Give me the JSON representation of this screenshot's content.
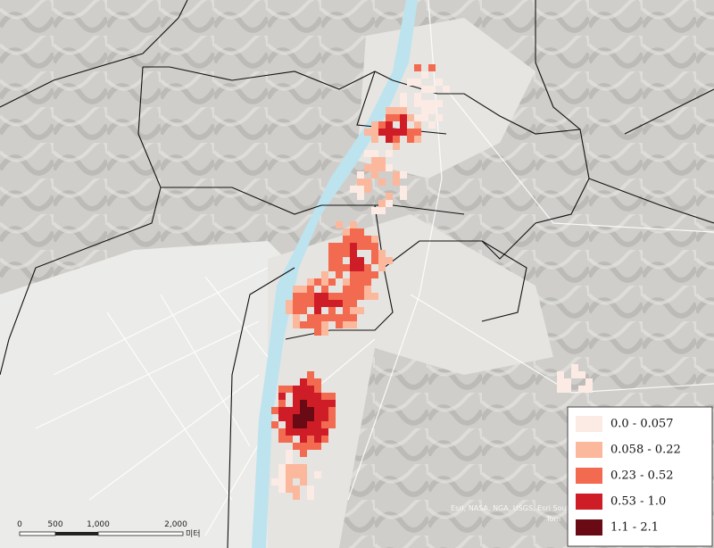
{
  "legend": {
    "items": [
      {
        "label": "0.0 - 0.057",
        "color": "#fcebe4"
      },
      {
        "label": "0.058 - 0.22",
        "color": "#fbb89c"
      },
      {
        "label": "0.23 - 0.52",
        "color": "#f26a4f"
      },
      {
        "label": "0.53 - 1.0",
        "color": "#cf1d28"
      },
      {
        "label": "1.1 - 2.1",
        "color": "#6a0a14"
      }
    ]
  },
  "scale_bar": {
    "labels": [
      "0",
      "500",
      "1,000",
      "2,000"
    ],
    "unit": "미터"
  },
  "attribution": [
    "Esri, NASA, NGA, USGS, Esri South",
    "Tom"
  ]
}
